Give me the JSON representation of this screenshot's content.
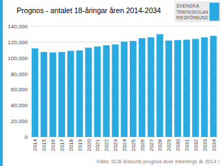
{
  "chart_data": {
    "type": "bar",
    "title": "Prognos - antalet 18-åringar åren 2014-2034",
    "categories": [
      "2014",
      "2015",
      "2016",
      "2017",
      "2018",
      "2019",
      "2020",
      "2021",
      "2022",
      "2023",
      "2024",
      "2025",
      "2026",
      "2027",
      "2028",
      "2029",
      "2030",
      "2031",
      "2032",
      "2033",
      "2034"
    ],
    "values": [
      112000,
      107500,
      107000,
      107500,
      109000,
      109500,
      113000,
      114500,
      116000,
      117000,
      120500,
      121500,
      125000,
      126000,
      130000,
      122000,
      122500,
      123000,
      124000,
      126000,
      128000
    ],
    "color": "#29ABE2",
    "ylim": [
      0,
      140000
    ],
    "yticks": [
      0,
      {
        "value": 20000,
        "label": "20,000"
      },
      {
        "value": 40000,
        "label": "40,000"
      },
      {
        "value": 60000,
        "label": "60,000"
      },
      {
        "value": 80000,
        "label": "80,000"
      },
      {
        "value": 100000,
        "label": "100,000"
      },
      {
        "value": 120000,
        "label": "120,000"
      },
      {
        "value": 140000,
        "label": "140,000"
      }
    ],
    "grid": true,
    "annotations": [
      "Källa: SCB årskurts prognos äver inbenings år 2014 /",
      "SVENSKA",
      "TRAFIKSKOLAN",
      "RIKSFÖRBUND"
    ]
  }
}
